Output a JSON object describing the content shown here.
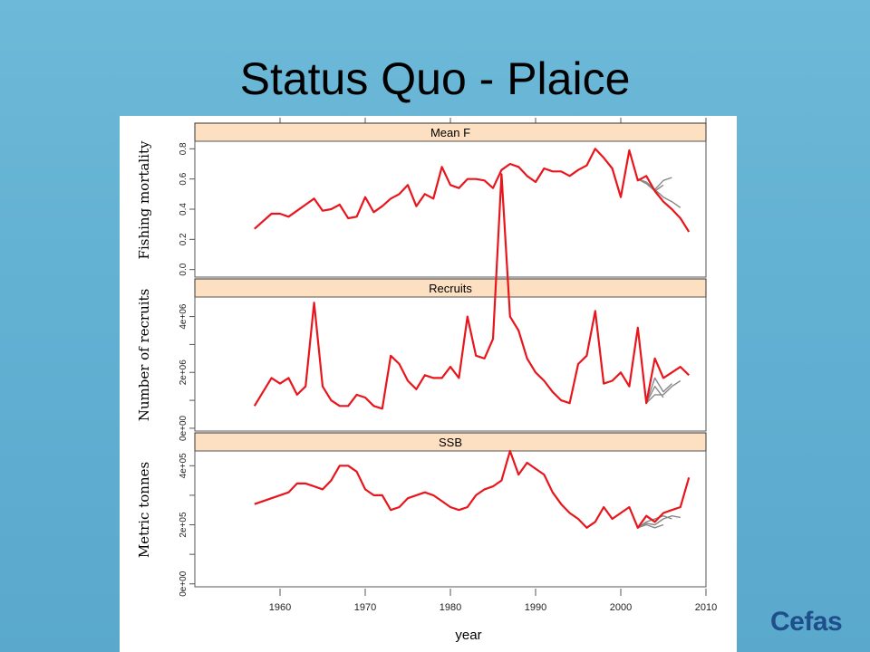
{
  "slide": {
    "title": "Status Quo - Plaice",
    "logo_text": "Cefas"
  },
  "chart_data": {
    "type": "line",
    "xlabel": "year",
    "xlim": [
      1950,
      2010
    ],
    "x_ticks": [
      1960,
      1970,
      1980,
      1990,
      2000,
      2010
    ],
    "line_colors": {
      "assessment": "#e8161c",
      "projection": "#888888"
    },
    "panels": [
      {
        "strip": "Mean F",
        "ylabel": "Fishing mortality",
        "ylim": [
          -0.05,
          0.85
        ],
        "y_ticks": [
          0.0,
          0.2,
          0.4,
          0.6,
          0.8
        ],
        "y_tick_labels": [
          "0.0",
          "0.2",
          "0.4",
          "0.6",
          "0.8"
        ],
        "series": [
          {
            "x": [
              1957,
              1958,
              1959,
              1960,
              1961,
              1962,
              1963,
              1964,
              1965,
              1966,
              1967,
              1968,
              1969,
              1970,
              1971,
              1972,
              1973,
              1974,
              1975,
              1976,
              1977,
              1978,
              1979,
              1980,
              1981,
              1982,
              1983,
              1984,
              1985,
              1986,
              1987,
              1988,
              1989,
              1990,
              1991,
              1992,
              1993,
              1994,
              1995,
              1996,
              1997,
              1998,
              1999,
              2000,
              2001,
              2002,
              2003,
              2004,
              2005,
              2006,
              2007,
              2008
            ],
            "y": [
              0.27,
              0.32,
              0.37,
              0.37,
              0.35,
              0.39,
              0.43,
              0.47,
              0.39,
              0.4,
              0.43,
              0.34,
              0.35,
              0.48,
              0.38,
              0.42,
              0.47,
              0.5,
              0.56,
              0.42,
              0.5,
              0.47,
              0.68,
              0.56,
              0.54,
              0.6,
              0.6,
              0.59,
              0.54,
              0.66,
              0.7,
              0.68,
              0.62,
              0.58,
              0.67,
              0.65,
              0.65,
              0.62,
              0.66,
              0.69,
              0.8,
              0.74,
              0.67,
              0.48,
              0.79,
              0.59,
              0.62,
              0.52,
              0.45,
              0.4,
              0.34,
              0.25
            ]
          },
          {
            "x": [
              2002,
              2003,
              2004,
              2005
            ],
            "y": [
              0.6,
              0.57,
              0.52,
              0.56
            ]
          },
          {
            "x": [
              2002,
              2003,
              2004,
              2005,
              2006
            ],
            "y": [
              0.6,
              0.58,
              0.53,
              0.59,
              0.61
            ]
          },
          {
            "x": [
              2002,
              2003,
              2004,
              2005,
              2006,
              2007
            ],
            "y": [
              0.6,
              0.57,
              0.53,
              0.48,
              0.45,
              0.41
            ]
          }
        ]
      },
      {
        "strip": "Recruits",
        "ylabel": "Number of recruits",
        "ylim": [
          -100000,
          4700000
        ],
        "y_ticks": [
          0,
          1000000,
          2000000,
          3000000,
          4000000
        ],
        "y_tick_labels": [
          "0e+00",
          "",
          "2e+06",
          "",
          "4e+06"
        ],
        "series": [
          {
            "x": [
              1957,
              1958,
              1959,
              1960,
              1961,
              1962,
              1963,
              1964,
              1965,
              1966,
              1967,
              1968,
              1969,
              1970,
              1971,
              1972,
              1973,
              1974,
              1975,
              1976,
              1977,
              1978,
              1979,
              1980,
              1981,
              1982,
              1983,
              1984,
              1985,
              1986,
              1987,
              1988,
              1989,
              1990,
              1991,
              1992,
              1993,
              1994,
              1995,
              1996,
              1997,
              1998,
              1999,
              2000,
              2001,
              2002,
              2003,
              2004,
              2005,
              2006,
              2007,
              2008
            ],
            "y": [
              800000,
              1300000,
              1800000,
              1600000,
              1800000,
              1200000,
              1500000,
              4500000,
              1500000,
              1000000,
              800000,
              800000,
              1200000,
              1100000,
              800000,
              700000,
              2600000,
              2300000,
              1700000,
              1400000,
              1900000,
              1800000,
              1800000,
              2200000,
              1800000,
              4000000,
              2600000,
              2500000,
              3200000,
              9100000,
              4000000,
              3500000,
              2500000,
              2000000,
              1700000,
              1300000,
              1000000,
              900000,
              2300000,
              2600000,
              4200000,
              1600000,
              1700000,
              2000000,
              1500000,
              3600000,
              900000,
              2500000,
              1800000,
              2000000,
              2200000,
              1900000
            ]
          },
          {
            "x": [
              2003,
              2004,
              2005
            ],
            "y": [
              900000,
              1500000,
              1100000
            ]
          },
          {
            "x": [
              2003,
              2004,
              2005,
              2006
            ],
            "y": [
              900000,
              1800000,
              1300000,
              1600000
            ]
          },
          {
            "x": [
              2003,
              2004,
              2005,
              2006,
              2007
            ],
            "y": [
              900000,
              1200000,
              1200000,
              1500000,
              1700000
            ]
          }
        ]
      },
      {
        "strip": "SSB",
        "ylabel": "Metric tonnes",
        "ylim": [
          -10000,
          450000
        ],
        "y_ticks": [
          0,
          100000,
          200000,
          300000,
          400000
        ],
        "y_tick_labels": [
          "0e+00",
          "",
          "2e+05",
          "",
          "4e+05"
        ],
        "series": [
          {
            "x": [
              1957,
              1958,
              1959,
              1960,
              1961,
              1962,
              1963,
              1964,
              1965,
              1966,
              1967,
              1968,
              1969,
              1970,
              1971,
              1972,
              1973,
              1974,
              1975,
              1976,
              1977,
              1978,
              1979,
              1980,
              1981,
              1982,
              1983,
              1984,
              1985,
              1986,
              1987,
              1988,
              1989,
              1990,
              1991,
              1992,
              1993,
              1994,
              1995,
              1996,
              1997,
              1998,
              1999,
              2000,
              2001,
              2002,
              2003,
              2004,
              2005,
              2006,
              2007,
              2008
            ],
            "y": [
              270000,
              280000,
              290000,
              300000,
              310000,
              340000,
              340000,
              330000,
              320000,
              350000,
              400000,
              400000,
              380000,
              320000,
              300000,
              300000,
              250000,
              260000,
              290000,
              300000,
              310000,
              300000,
              280000,
              260000,
              250000,
              260000,
              300000,
              320000,
              330000,
              350000,
              450000,
              370000,
              410000,
              390000,
              370000,
              310000,
              270000,
              240000,
              220000,
              190000,
              210000,
              260000,
              220000,
              240000,
              260000,
              190000,
              230000,
              210000,
              240000,
              250000,
              260000,
              360000
            ]
          },
          {
            "x": [
              2002,
              2003,
              2004,
              2005
            ],
            "y": [
              190000,
              200000,
              190000,
              200000
            ]
          },
          {
            "x": [
              2002,
              2003,
              2004,
              2005,
              2006
            ],
            "y": [
              190000,
              210000,
              220000,
              230000,
              220000
            ]
          },
          {
            "x": [
              2002,
              2003,
              2004,
              2005,
              2006,
              2007
            ],
            "y": [
              190000,
              205000,
              200000,
              220000,
              230000,
              225000
            ]
          }
        ]
      }
    ]
  }
}
